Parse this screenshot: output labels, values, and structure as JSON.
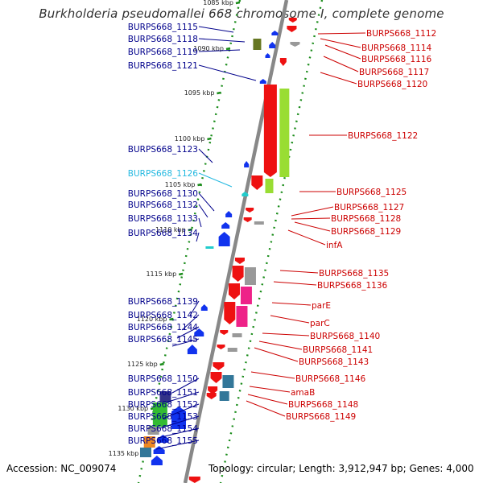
{
  "title": "Burkholderia pseudomallei 668 chromosome I, complete genome",
  "footer": {
    "accession": "Accession: NC_009074",
    "topology": "Topology: circular; Length: 3,912,947 bp; Genes: 4,000"
  },
  "colors": {
    "backbone": "#888888",
    "ticks": "#1a8c1a",
    "left_label": "#00008b",
    "left_label_highlight": "#22b8e0",
    "right_label": "#cc0000",
    "gene_red": "#ee1111",
    "gene_blue": "#1133ee",
    "gene_lime": "#99dd33",
    "gene_green": "#33bb33",
    "gene_olive": "#667722",
    "gene_pink": "#ee2288",
    "gene_gray": "#999999",
    "gene_teal": "#337799",
    "gene_navy": "#333388",
    "gene_orange": "#ee8822",
    "gene_cyan": "#22cccc"
  },
  "kbp_ticks": [
    "1085 kbp",
    "1090 kbp",
    "1095 kbp",
    "1100 kbp",
    "1105 kbp",
    "1110 kbp",
    "1115 kbp",
    "1120 kbp",
    "1125 kbp",
    "1130 kbp",
    "1135 kbp"
  ],
  "left_labels": [
    "BURPS668_1115",
    "BURPS668_1118",
    "BURPS668_1119",
    "BURPS668_1121",
    "BURPS668_1123",
    "BURPS668_1126",
    "BURPS668_1130",
    "BURPS668_1132",
    "BURPS668_1133",
    "BURPS668_1134",
    "BURPS668_1139",
    "BURPS668_1142",
    "BURPS668_1144",
    "BURPS668_1145",
    "BURPS668_1150",
    "BURPS668_1151",
    "BURPS668_1152",
    "BURPS668_1153",
    "BURPS668_1154",
    "BURPS668_1155"
  ],
  "right_labels": [
    "BURPS668_1112",
    "BURPS668_1114",
    "BURPS668_1116",
    "BURPS668_1117",
    "BURPS668_1120",
    "BURPS668_1122",
    "BURPS668_1125",
    "BURPS668_1127",
    "BURPS668_1128",
    "BURPS668_1129",
    "infA",
    "BURPS668_1135",
    "BURPS668_1136",
    "parE",
    "parC",
    "BURPS668_1140",
    "BURPS668_1141",
    "BURPS668_1143",
    "BURPS668_1146",
    "amaB",
    "BURPS668_1148",
    "BURPS668_1149"
  ]
}
